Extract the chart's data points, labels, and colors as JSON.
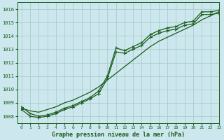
{
  "title": "Graphe pression niveau de la mer (hPa)",
  "background_color": "#cce8ee",
  "grid_color": "#aacccc",
  "line_color": "#1a5c1a",
  "xlim": [
    -0.5,
    23
  ],
  "ylim": [
    1007.5,
    1016.5
  ],
  "xticks": [
    0,
    1,
    2,
    3,
    4,
    5,
    6,
    7,
    8,
    9,
    10,
    11,
    12,
    13,
    14,
    15,
    16,
    17,
    18,
    19,
    20,
    21,
    22,
    23
  ],
  "yticks": [
    1008,
    1009,
    1010,
    1011,
    1012,
    1013,
    1014,
    1015,
    1016
  ],
  "series1": [
    1008.7,
    1008.2,
    1008.0,
    1008.1,
    1008.3,
    1008.6,
    1008.8,
    1009.1,
    1009.4,
    1009.9,
    1011.0,
    1013.1,
    1012.9,
    1013.2,
    1013.5,
    1014.1,
    1014.4,
    1014.6,
    1014.7,
    1015.0,
    1015.1,
    1015.8,
    1015.8,
    1015.9
  ],
  "series2": [
    1008.5,
    1008.0,
    1007.9,
    1008.0,
    1008.2,
    1008.5,
    1008.7,
    1009.0,
    1009.3,
    1009.7,
    1010.8,
    1012.8,
    1012.7,
    1013.0,
    1013.3,
    1013.9,
    1014.2,
    1014.4,
    1014.5,
    1014.8,
    1014.9,
    1015.6,
    1015.6,
    1015.7
  ],
  "series3": [
    1008.6,
    1008.4,
    1008.3,
    1008.5,
    1008.7,
    1009.0,
    1009.2,
    1009.5,
    1009.8,
    1010.2,
    1010.7,
    1011.2,
    1011.7,
    1012.2,
    1012.7,
    1013.2,
    1013.6,
    1013.9,
    1014.2,
    1014.5,
    1014.8,
    1015.2,
    1015.5,
    1015.8
  ]
}
